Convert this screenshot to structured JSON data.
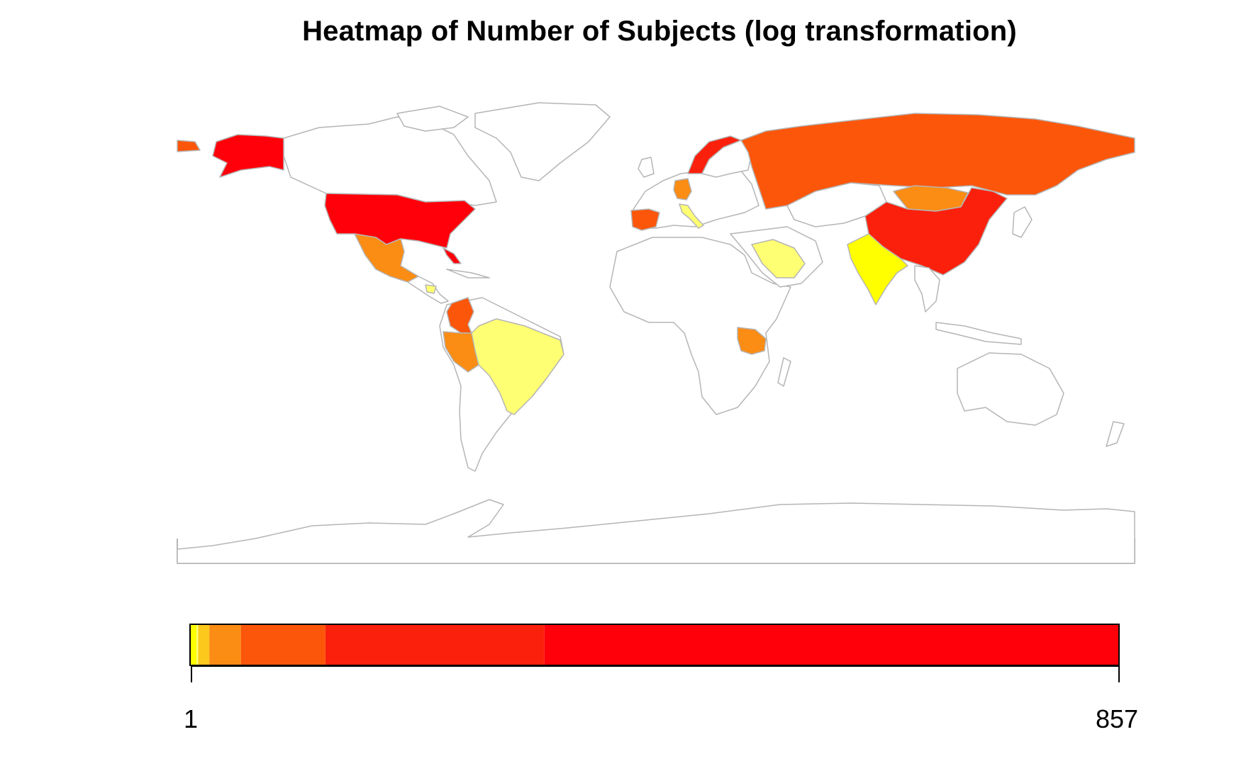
{
  "title": "Heatmap of Number of Subjects (log transformation)",
  "colors": {
    "outline": "#b5b5b5",
    "no_data": "#ffffff",
    "level_1": "#ffff00",
    "level_2": "#ffff73",
    "level_3": "#fcc81c",
    "level_4": "#fb8c14",
    "level_5": "#fc560a",
    "level_6": "#fb200c",
    "level_7": "#ff000a"
  },
  "legend": {
    "min_label": "1",
    "max_label": "857",
    "scale": "log",
    "bands": [
      {
        "color": "#ffff73",
        "upper_fraction": 0.008
      },
      {
        "color": "#fcc81c",
        "upper_fraction": 0.02
      },
      {
        "color": "#fb8c14",
        "upper_fraction": 0.054
      },
      {
        "color": "#fc560a",
        "upper_fraction": 0.145
      },
      {
        "color": "#fb200c",
        "upper_fraction": 0.381
      },
      {
        "color": "#ff000a",
        "upper_fraction": 1.0
      }
    ]
  },
  "countries": [
    {
      "name": "USA",
      "level": "level_7"
    },
    {
      "name": "Alaska (USA)",
      "level": "level_7"
    },
    {
      "name": "China",
      "level": "level_6"
    },
    {
      "name": "Norway",
      "level": "level_6"
    },
    {
      "name": "Russia",
      "level": "level_5"
    },
    {
      "name": "Spain",
      "level": "level_5"
    },
    {
      "name": "Colombia",
      "level": "level_5"
    },
    {
      "name": "Mongolia",
      "level": "level_4"
    },
    {
      "name": "Mexico",
      "level": "level_4"
    },
    {
      "name": "Peru",
      "level": "level_4"
    },
    {
      "name": "Tanzania",
      "level": "level_4"
    },
    {
      "name": "Germany",
      "level": "level_4"
    },
    {
      "name": "Brazil",
      "level": "level_2"
    },
    {
      "name": "Saudi Arabia",
      "level": "level_2"
    },
    {
      "name": "Italy",
      "level": "level_2"
    },
    {
      "name": "Honduras",
      "level": "level_2"
    },
    {
      "name": "India",
      "level": "level_1"
    }
  ]
}
